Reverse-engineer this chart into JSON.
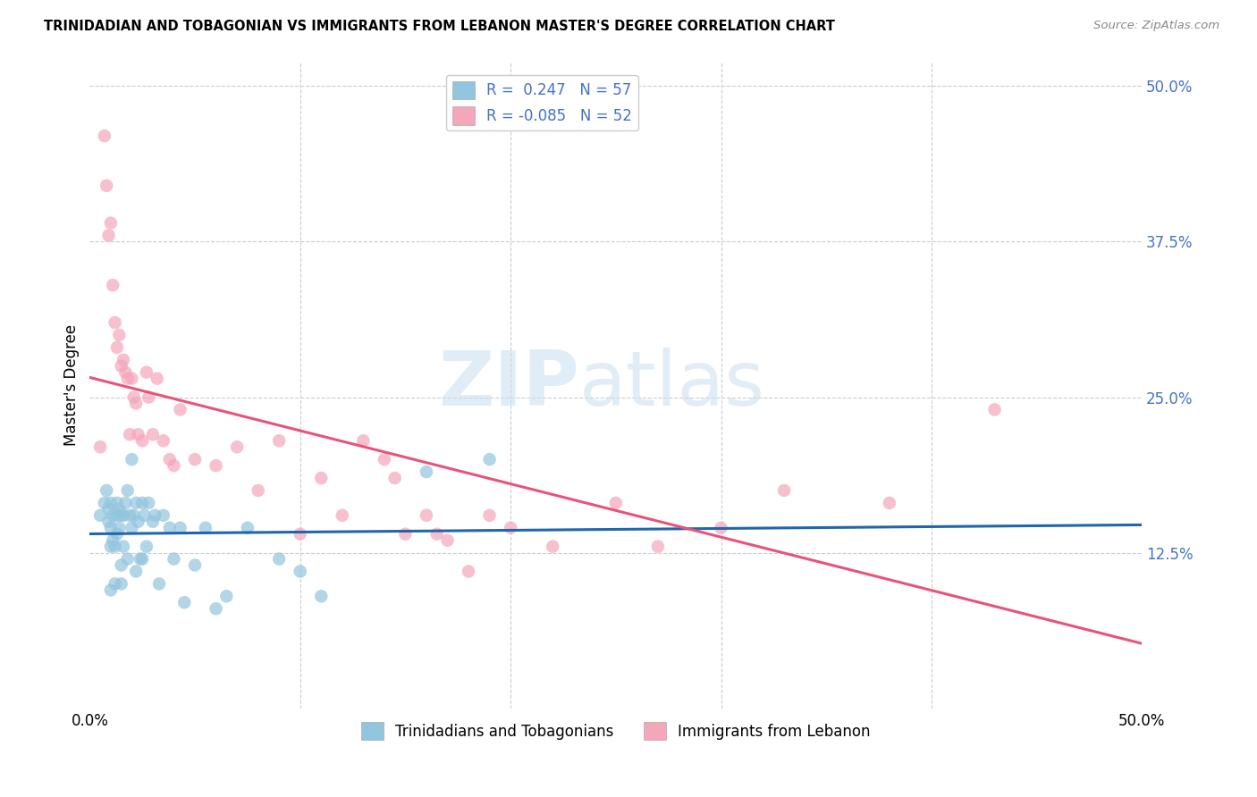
{
  "title": "TRINIDADIAN AND TOBAGONIAN VS IMMIGRANTS FROM LEBANON MASTER'S DEGREE CORRELATION CHART",
  "source": "Source: ZipAtlas.com",
  "ylabel": "Master's Degree",
  "xmin": 0.0,
  "xmax": 0.5,
  "ymin": 0.0,
  "ymax": 0.52,
  "blue_color": "#92c5de",
  "pink_color": "#f4a6bb",
  "blue_line_color": "#2166ac",
  "pink_line_color": "#e8537a",
  "dash_color": "#aaaaaa",
  "legend_blue_label": "R =  0.247   N = 57",
  "legend_pink_label": "R = -0.085   N = 52",
  "legend_bottom_blue": "Trinidadians and Tobagonians",
  "legend_bottom_pink": "Immigrants from Lebanon",
  "blue_x": [
    0.005,
    0.007,
    0.008,
    0.009,
    0.009,
    0.01,
    0.01,
    0.01,
    0.01,
    0.011,
    0.011,
    0.012,
    0.012,
    0.013,
    0.013,
    0.013,
    0.014,
    0.014,
    0.015,
    0.015,
    0.015,
    0.016,
    0.016,
    0.017,
    0.018,
    0.018,
    0.019,
    0.02,
    0.02,
    0.021,
    0.022,
    0.022,
    0.023,
    0.024,
    0.025,
    0.025,
    0.026,
    0.027,
    0.028,
    0.03,
    0.031,
    0.033,
    0.035,
    0.038,
    0.04,
    0.043,
    0.045,
    0.05,
    0.055,
    0.06,
    0.065,
    0.075,
    0.09,
    0.1,
    0.11,
    0.16,
    0.19
  ],
  "blue_y": [
    0.155,
    0.165,
    0.175,
    0.15,
    0.16,
    0.095,
    0.13,
    0.145,
    0.165,
    0.135,
    0.155,
    0.1,
    0.13,
    0.14,
    0.155,
    0.165,
    0.145,
    0.16,
    0.1,
    0.115,
    0.155,
    0.13,
    0.155,
    0.165,
    0.12,
    0.175,
    0.155,
    0.145,
    0.2,
    0.155,
    0.11,
    0.165,
    0.15,
    0.12,
    0.12,
    0.165,
    0.155,
    0.13,
    0.165,
    0.15,
    0.155,
    0.1,
    0.155,
    0.145,
    0.12,
    0.145,
    0.085,
    0.115,
    0.145,
    0.08,
    0.09,
    0.145,
    0.12,
    0.11,
    0.09,
    0.19,
    0.2
  ],
  "pink_x": [
    0.005,
    0.007,
    0.008,
    0.009,
    0.01,
    0.011,
    0.012,
    0.013,
    0.014,
    0.015,
    0.016,
    0.017,
    0.018,
    0.019,
    0.02,
    0.021,
    0.022,
    0.023,
    0.025,
    0.027,
    0.028,
    0.03,
    0.032,
    0.035,
    0.038,
    0.04,
    0.043,
    0.05,
    0.06,
    0.07,
    0.08,
    0.09,
    0.1,
    0.11,
    0.12,
    0.13,
    0.14,
    0.145,
    0.15,
    0.16,
    0.165,
    0.17,
    0.18,
    0.19,
    0.2,
    0.22,
    0.25,
    0.27,
    0.3,
    0.33,
    0.38,
    0.43
  ],
  "pink_y": [
    0.21,
    0.46,
    0.42,
    0.38,
    0.39,
    0.34,
    0.31,
    0.29,
    0.3,
    0.275,
    0.28,
    0.27,
    0.265,
    0.22,
    0.265,
    0.25,
    0.245,
    0.22,
    0.215,
    0.27,
    0.25,
    0.22,
    0.265,
    0.215,
    0.2,
    0.195,
    0.24,
    0.2,
    0.195,
    0.21,
    0.175,
    0.215,
    0.14,
    0.185,
    0.155,
    0.215,
    0.2,
    0.185,
    0.14,
    0.155,
    0.14,
    0.135,
    0.11,
    0.155,
    0.145,
    0.13,
    0.165,
    0.13,
    0.145,
    0.175,
    0.165,
    0.24
  ]
}
